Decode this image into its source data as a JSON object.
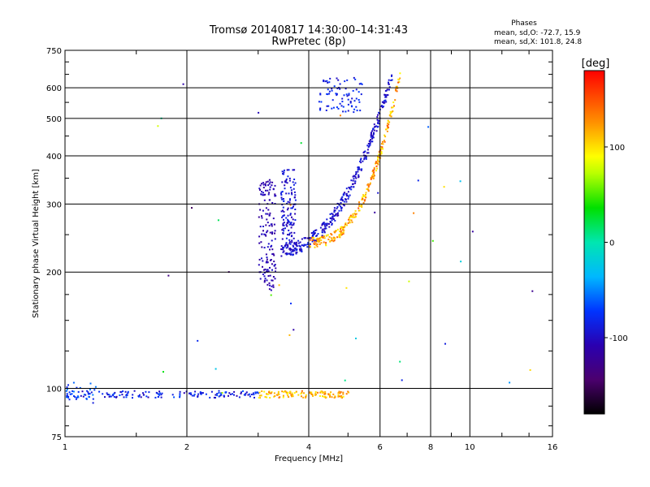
{
  "chart_data": {
    "type": "scatter",
    "title": "Tromsø 20140817 14:30:00–14:31:43",
    "subtitle": "RwPretec (8p)",
    "xlabel": "Frequency [MHz]",
    "ylabel": "Stationary phase Virtual Height [km]",
    "xscale": "log",
    "yscale": "log",
    "xlim": [
      1,
      16
    ],
    "ylim": [
      75,
      750
    ],
    "x_ticks": [
      1,
      2,
      4,
      6,
      8,
      10,
      16
    ],
    "x_tick_labels": [
      "1",
      "2",
      "4",
      "6",
      "8",
      "10",
      "16"
    ],
    "y_ticks": [
      75,
      100,
      200,
      300,
      400,
      500,
      600,
      750
    ],
    "y_tick_labels": [
      "75",
      "100",
      "200",
      "300",
      "400",
      "500",
      "600",
      "750"
    ],
    "grid": true,
    "phase_box": {
      "heading": "Phases",
      "line1": "mean, sd,O: -72.7, 15.9",
      "line2": "mean, sd,X: 101.8, 24.8"
    },
    "colorbar": {
      "label": "[deg]",
      "range": [
        -180,
        180
      ],
      "ticks": [
        100,
        0,
        -100
      ],
      "tick_labels": [
        "100",
        "0",
        "-100"
      ]
    },
    "point_groups": [
      {
        "name": "O-mode E-layer echoes",
        "x_range": [
          1.0,
          3.0
        ],
        "y_range": [
          95,
          99
        ],
        "phase_range": [
          -110,
          -60
        ],
        "count": 150
      },
      {
        "name": "X-mode E-layer echoes",
        "x_range": [
          3.0,
          5.0
        ],
        "y_range": [
          95,
          99
        ],
        "phase_range": [
          90,
          140
        ],
        "count": 120
      },
      {
        "name": "Es traces",
        "x_range": [
          1.0,
          1.2
        ],
        "y_range": [
          92,
          104
        ],
        "phase_range": [
          -90,
          -50
        ],
        "count": 30
      },
      {
        "name": "O-mode F-layer trace",
        "x_range": [
          3.4,
          6.4
        ],
        "y_range": [
          230,
          650
        ],
        "phase_range": [
          -110,
          -80
        ],
        "count": 350
      },
      {
        "name": "X-mode F-layer trace",
        "x_range": [
          4.0,
          6.7
        ],
        "y_range": [
          240,
          660
        ],
        "phase_range": [
          90,
          150
        ],
        "count": 250
      },
      {
        "name": "spread echoes near 3 MHz",
        "x_range": [
          3.0,
          3.3
        ],
        "y_range": [
          180,
          350
        ],
        "phase_range": [
          -120,
          -95
        ],
        "count": 150
      },
      {
        "name": "spread echoes near 3.5 MHz",
        "x_range": [
          3.4,
          3.7
        ],
        "y_range": [
          240,
          370
        ],
        "phase_range": [
          -110,
          -80
        ],
        "count": 120
      },
      {
        "name": "upper trace",
        "x_range": [
          4.2,
          5.4
        ],
        "y_range": [
          520,
          640
        ],
        "phase_range": [
          -100,
          -70
        ],
        "count": 80
      },
      {
        "name": "sporadic echoes",
        "x_range": [
          1.5,
          16
        ],
        "y_range": [
          85,
          650
        ],
        "phase_range": [
          -150,
          160
        ],
        "count": 40
      }
    ]
  }
}
